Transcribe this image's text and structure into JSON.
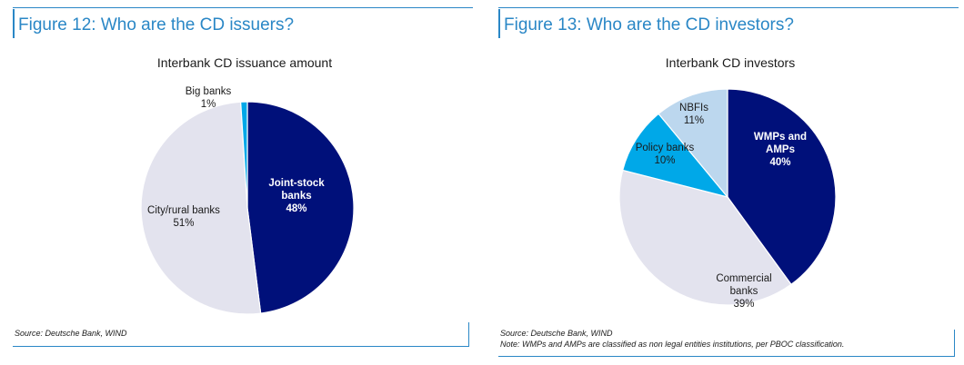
{
  "panels": [
    {
      "figure_title": "Figure 12: Who are the CD issuers?",
      "source": "Source: Deutsche Bank, WIND",
      "note": ""
    },
    {
      "figure_title": "Figure 13: Who are the CD investors?",
      "source": "Source: Deutsche Bank, WIND",
      "note": "Note: WMPs and AMPs are classified as non legal entities institutions, per PBOC classification."
    }
  ],
  "chart_data": [
    {
      "type": "pie",
      "title": "Interbank CD issuance amount",
      "slices": [
        {
          "label": [
            "Joint-stock",
            "banks"
          ],
          "pct_label": "48%",
          "value": 48,
          "color": "#00107a",
          "text_color": "#ffffff",
          "bold": true
        },
        {
          "label": [
            "City/rural banks"
          ],
          "pct_label": "51%",
          "value": 51,
          "color": "#e3e3ee",
          "text_color": "#1a1a1a",
          "bold": false
        },
        {
          "label": [
            "Big banks"
          ],
          "pct_label": "1%",
          "value": 1,
          "color": "#00a8e8",
          "text_color": "#1a1a1a",
          "bold": false
        }
      ]
    },
    {
      "type": "pie",
      "title": "Interbank CD investors",
      "slices": [
        {
          "label": [
            "WMPs and",
            "AMPs"
          ],
          "pct_label": "40%",
          "value": 40,
          "color": "#00107a",
          "text_color": "#ffffff",
          "bold": true
        },
        {
          "label": [
            "Commercial",
            "banks"
          ],
          "pct_label": "39%",
          "value": 39,
          "color": "#e3e3ee",
          "text_color": "#1a1a1a",
          "bold": false
        },
        {
          "label": [
            "Policy banks"
          ],
          "pct_label": "10%",
          "value": 10,
          "color": "#00a8e8",
          "text_color": "#1a1a1a",
          "bold": false
        },
        {
          "label": [
            "NBFIs"
          ],
          "pct_label": "11%",
          "value": 11,
          "color": "#bcd7ee",
          "text_color": "#1a1a1a",
          "bold": false
        }
      ]
    }
  ]
}
